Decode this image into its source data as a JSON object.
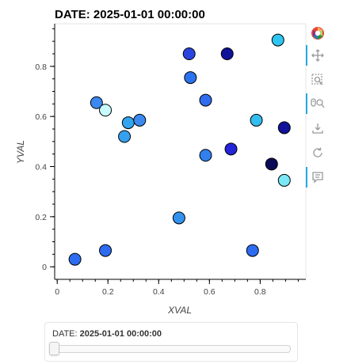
{
  "chart_data": {
    "type": "scatter",
    "title": "DATE: 2025-01-01 00:00:00",
    "xlabel": "XVAL",
    "ylabel": "YVAL",
    "xlim": [
      -0.01,
      0.98
    ],
    "ylim": [
      -0.05,
      0.97
    ],
    "xticks": [
      0,
      0.2,
      0.4,
      0.6,
      0.8
    ],
    "yticks": [
      0,
      0.2,
      0.4,
      0.6,
      0.8
    ],
    "grid": false,
    "points": [
      {
        "x": 0.52,
        "y": 0.85,
        "color": "#2a44e0"
      },
      {
        "x": 0.67,
        "y": 0.85,
        "color": "#10129a"
      },
      {
        "x": 0.87,
        "y": 0.905,
        "color": "#2ec6f0"
      },
      {
        "x": 0.525,
        "y": 0.755,
        "color": "#2b72ee"
      },
      {
        "x": 0.155,
        "y": 0.655,
        "color": "#3a88f0"
      },
      {
        "x": 0.585,
        "y": 0.665,
        "color": "#2f6cf0"
      },
      {
        "x": 0.19,
        "y": 0.625,
        "color": "#c8fcff"
      },
      {
        "x": 0.28,
        "y": 0.575,
        "color": "#33a4ee"
      },
      {
        "x": 0.325,
        "y": 0.585,
        "color": "#3a8af0"
      },
      {
        "x": 0.785,
        "y": 0.585,
        "color": "#33bcee"
      },
      {
        "x": 0.895,
        "y": 0.555,
        "color": "#12129a"
      },
      {
        "x": 0.265,
        "y": 0.52,
        "color": "#35a0ee"
      },
      {
        "x": 0.685,
        "y": 0.47,
        "color": "#2424d8"
      },
      {
        "x": 0.585,
        "y": 0.445,
        "color": "#3180ee"
      },
      {
        "x": 0.845,
        "y": 0.41,
        "color": "#0a0c58"
      },
      {
        "x": 0.895,
        "y": 0.345,
        "color": "#7ae8f6"
      },
      {
        "x": 0.48,
        "y": 0.195,
        "color": "#3292ee"
      },
      {
        "x": 0.07,
        "y": 0.03,
        "color": "#2d6cf0"
      },
      {
        "x": 0.19,
        "y": 0.065,
        "color": "#2d6cf0"
      },
      {
        "x": 0.77,
        "y": 0.065,
        "color": "#2d6cf0"
      }
    ]
  },
  "slider": {
    "label": "DATE:",
    "value": "2025-01-01 00:00:00",
    "position": 0
  },
  "toolbar": {
    "tools": [
      {
        "name": "bokeh-logo-icon",
        "active": false
      },
      {
        "name": "pan-icon",
        "active": true
      },
      {
        "name": "box-zoom-icon",
        "active": false
      },
      {
        "name": "wheel-zoom-icon",
        "active": true
      },
      {
        "name": "save-icon",
        "active": false
      },
      {
        "name": "reset-icon",
        "active": false
      },
      {
        "name": "hover-icon",
        "active": true
      }
    ]
  }
}
